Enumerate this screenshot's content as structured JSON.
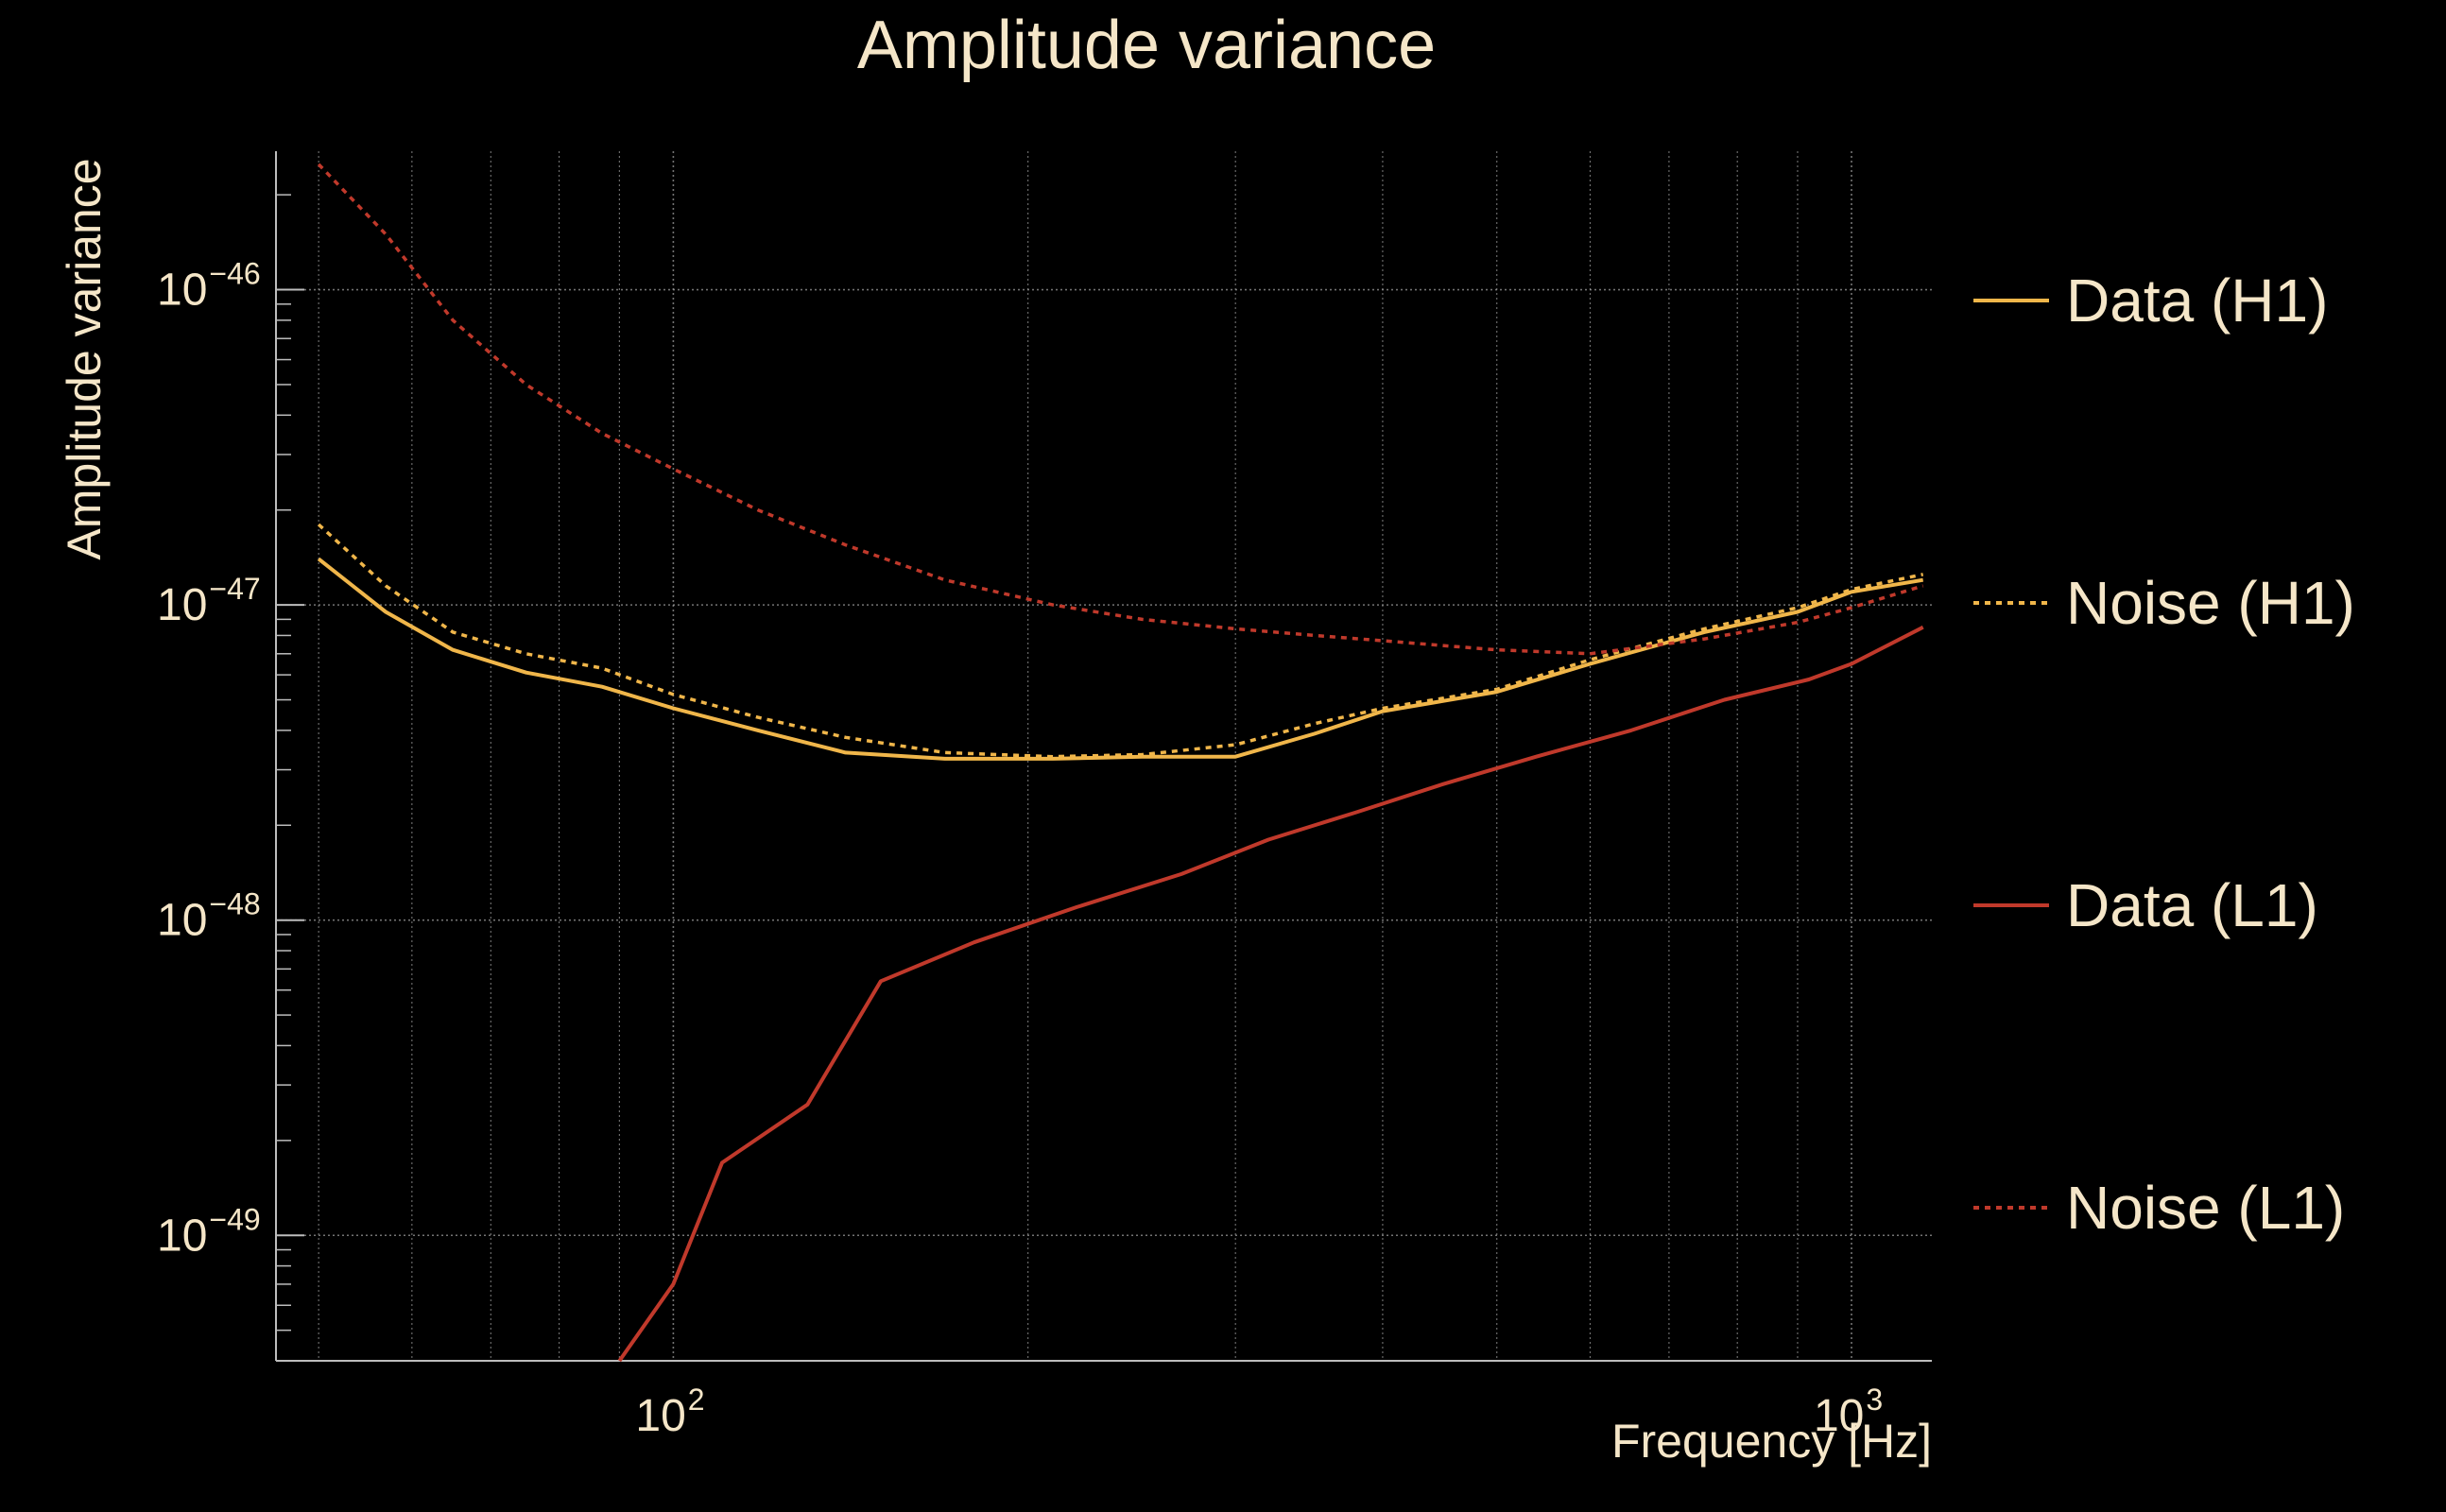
{
  "chart_data": {
    "type": "line",
    "title": "Amplitude variance",
    "xlabel": "Frequency [Hz]",
    "ylabel": "Amplitude variance",
    "x_scale": "log",
    "y_scale": "log",
    "xlim": [
      46,
      1170
    ],
    "ylim": [
      4e-50,
      2.75e-46
    ],
    "x_ticks": [
      {
        "value": 100,
        "base": "10",
        "exp": "2"
      },
      {
        "value": 1000,
        "base": "10",
        "exp": "3"
      }
    ],
    "y_ticks": [
      {
        "value": 1e-46,
        "base": "10",
        "exp": "−46"
      },
      {
        "value": 1e-47,
        "base": "10",
        "exp": "−47"
      },
      {
        "value": 1e-48,
        "base": "10",
        "exp": "−48"
      },
      {
        "value": 1e-49,
        "base": "10",
        "exp": "−49"
      }
    ],
    "grid": true,
    "legend_position": "right",
    "colors": {
      "background": "#000000",
      "text": "#f5e6c8",
      "grid": "#9a9a9a",
      "axis": "#bdbdbd",
      "h1": "#f0b64a",
      "l1": "#c0392b"
    },
    "series": [
      {
        "name": "Data (H1)",
        "color": "#f0b64a",
        "dash": "solid",
        "x": [
          50,
          57,
          65,
          75,
          87,
          100,
          118,
          140,
          170,
          210,
          250,
          300,
          350,
          400,
          500,
          600,
          750,
          900,
          1000,
          1150
        ],
        "y": [
          1.4e-47,
          9.5e-48,
          7.2e-48,
          6.1e-48,
          5.5e-48,
          4.7e-48,
          4e-48,
          3.4e-48,
          3.25e-48,
          3.25e-48,
          3.3e-48,
          3.3e-48,
          3.9e-48,
          4.6e-48,
          5.3e-48,
          6.5e-48,
          8.2e-48,
          9.5e-48,
          1.1e-47,
          1.2e-47
        ]
      },
      {
        "name": "Noise (H1)",
        "color": "#f0b64a",
        "dash": "dotted",
        "x": [
          50,
          57,
          65,
          75,
          87,
          100,
          118,
          140,
          170,
          210,
          250,
          300,
          350,
          400,
          500,
          600,
          750,
          900,
          1000,
          1150
        ],
        "y": [
          1.8e-47,
          1.15e-47,
          8.2e-48,
          7e-48,
          6.3e-48,
          5.2e-48,
          4.4e-48,
          3.8e-48,
          3.4e-48,
          3.3e-48,
          3.35e-48,
          3.6e-48,
          4.2e-48,
          4.7e-48,
          5.4e-48,
          6.7e-48,
          8.4e-48,
          9.8e-48,
          1.12e-47,
          1.25e-47
        ]
      },
      {
        "name": "Data (L1)",
        "color": "#c0392b",
        "dash": "solid",
        "x": [
          90,
          100,
          110,
          130,
          150,
          180,
          220,
          270,
          320,
          380,
          450,
          540,
          650,
          780,
          920,
          1000,
          1150
        ],
        "y": [
          4e-50,
          7e-50,
          1.7e-49,
          2.6e-49,
          6.4e-49,
          8.5e-49,
          1.1e-48,
          1.4e-48,
          1.8e-48,
          2.2e-48,
          2.7e-48,
          3.3e-48,
          4e-48,
          5e-48,
          5.8e-48,
          6.5e-48,
          8.5e-48
        ]
      },
      {
        "name": "Noise (L1)",
        "color": "#c0392b",
        "dash": "dotted",
        "x": [
          50,
          57,
          65,
          75,
          87,
          100,
          118,
          140,
          170,
          210,
          250,
          300,
          350,
          400,
          500,
          600,
          750,
          900,
          1000,
          1150
        ],
        "y": [
          2.5e-46,
          1.5e-46,
          8e-47,
          5e-47,
          3.5e-47,
          2.7e-47,
          2e-47,
          1.55e-47,
          1.2e-47,
          1e-47,
          9e-48,
          8.4e-48,
          8e-48,
          7.7e-48,
          7.2e-48,
          7e-48,
          7.8e-48,
          8.8e-48,
          9.8e-48,
          1.15e-47
        ]
      }
    ]
  }
}
